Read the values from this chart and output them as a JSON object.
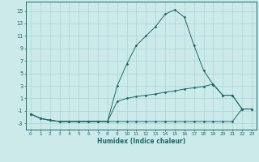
{
  "xlabel": "Humidex (Indice chaleur)",
  "x": [
    0,
    1,
    2,
    3,
    4,
    5,
    6,
    7,
    8,
    9,
    10,
    11,
    12,
    13,
    14,
    15,
    16,
    17,
    18,
    19,
    20,
    21,
    22,
    23
  ],
  "line1": [
    -1.5,
    -2.2,
    -2.5,
    -2.7,
    -2.7,
    -2.7,
    -2.7,
    -2.7,
    -2.7,
    -2.7,
    -2.7,
    -2.7,
    -2.7,
    -2.7,
    -2.7,
    -2.7,
    -2.7,
    -2.7,
    -2.7,
    -2.7,
    -2.7,
    -2.7,
    -0.7,
    -0.7
  ],
  "line2": [
    -1.5,
    -2.2,
    -2.5,
    -2.7,
    -2.7,
    -2.7,
    -2.7,
    -2.7,
    -2.7,
    0.5,
    1.0,
    1.3,
    1.5,
    1.7,
    2.0,
    2.2,
    2.5,
    2.7,
    2.9,
    3.3,
    1.5,
    1.5,
    -0.7,
    -0.7
  ],
  "line3": [
    -1.5,
    -2.2,
    -2.5,
    -2.7,
    -2.7,
    -2.7,
    -2.7,
    -2.7,
    -2.7,
    3.0,
    6.5,
    9.5,
    11.0,
    12.5,
    14.5,
    15.2,
    14.0,
    9.5,
    5.5,
    3.2,
    1.5,
    1.5,
    -0.7,
    -0.7
  ],
  "line_color": "#1a6b6b",
  "bg_color": "#cceaea",
  "grid_color": "#aad4d4",
  "xlim": [
    -0.5,
    23.5
  ],
  "ylim": [
    -4.0,
    16.5
  ],
  "yticks": [
    -3,
    -1,
    1,
    3,
    5,
    7,
    9,
    11,
    13,
    15
  ],
  "xticks": [
    0,
    1,
    2,
    3,
    4,
    5,
    6,
    7,
    8,
    9,
    10,
    11,
    12,
    13,
    14,
    15,
    16,
    17,
    18,
    19,
    20,
    21,
    22,
    23
  ]
}
